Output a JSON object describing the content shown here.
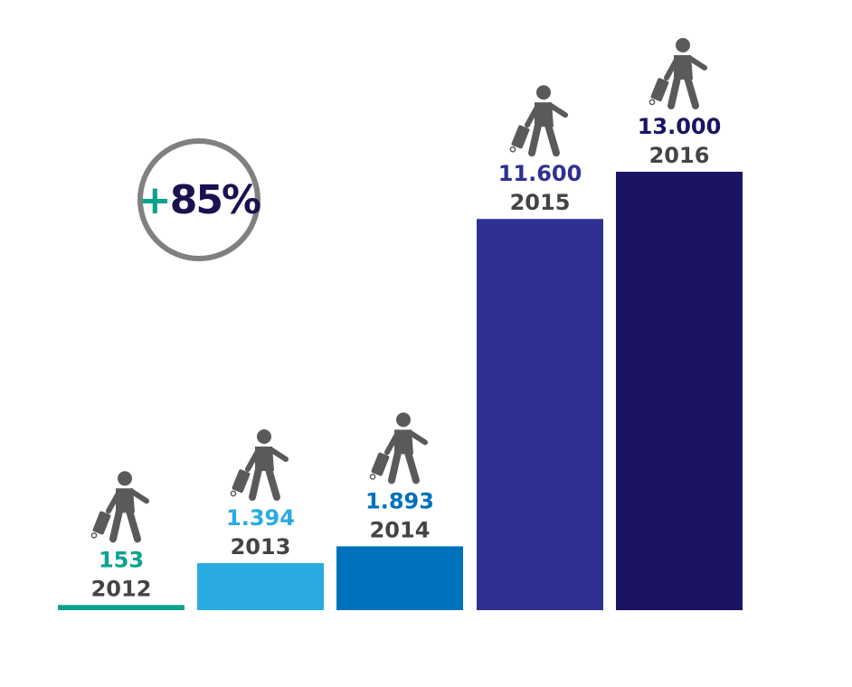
{
  "chart_data": {
    "type": "bar",
    "categories": [
      "2012",
      "2013",
      "2014",
      "2015",
      "2016"
    ],
    "values": [
      153,
      1394,
      1893,
      11600,
      13000
    ],
    "value_labels": [
      "153",
      "1.394",
      "1.893",
      "11.600",
      "13.000"
    ],
    "ylim": [
      0,
      13000
    ],
    "grid": false,
    "colors": [
      "#0aa28e",
      "#29abe2",
      "#0071bc",
      "#2e3192",
      "#1b1464"
    ],
    "icon": "traveler-with-suitcase-icon"
  },
  "badge": {
    "sign": "+",
    "value": "85%",
    "sign_color": "#0aa28e",
    "value_color": "#1a1150"
  }
}
